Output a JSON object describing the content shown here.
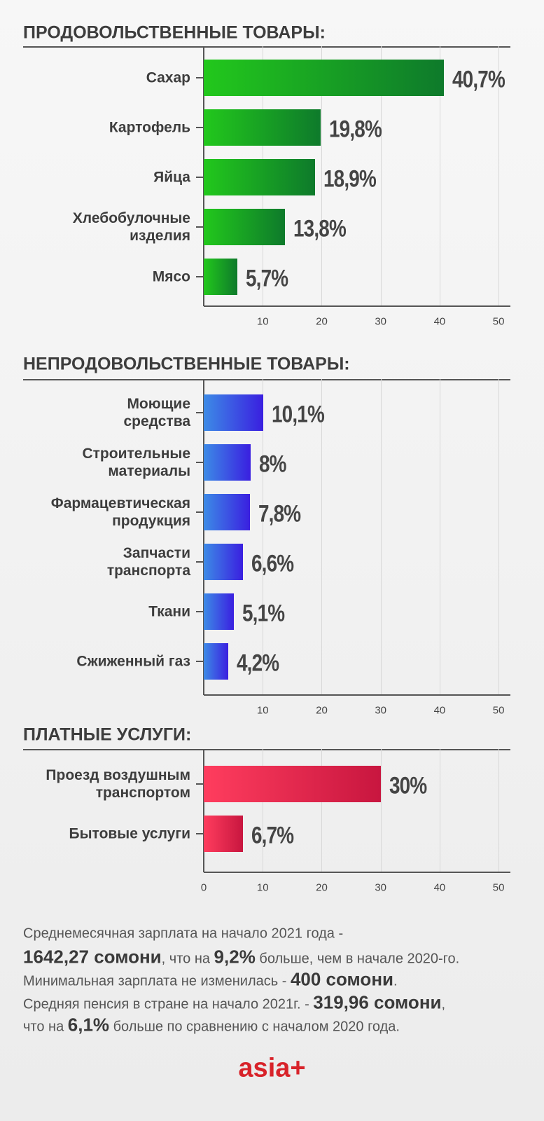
{
  "chart_data": [
    {
      "type": "bar",
      "orientation": "horizontal",
      "title": "ПРОДОВОЛЬСТВЕННЫЕ ТОВАРЫ:",
      "categories": [
        "Сахар",
        "Картофель",
        "Яйца",
        "Хлебобулочные\nизделия",
        "Мясо"
      ],
      "values": [
        40.7,
        19.8,
        18.9,
        13.8,
        5.7
      ],
      "value_labels": [
        "40,7%",
        "19,8%",
        "18,9%",
        "13,8%",
        "5,7%"
      ],
      "colors": [
        "#22c81c",
        "#0e7a2b"
      ],
      "xlim": [
        0,
        52
      ],
      "xticks": [
        10,
        20,
        30,
        40,
        50
      ],
      "grid": true
    },
    {
      "type": "bar",
      "orientation": "horizontal",
      "title": "НЕПРОДОВОЛЬСТВЕННЫЕ ТОВАРЫ:",
      "categories": [
        "Моющие\nсредства",
        "Строительные\nматериалы",
        "Фармацевтическая\nпродукция",
        "Запчасти\nтранспорта",
        "Ткани",
        "Сжиженный газ"
      ],
      "values": [
        10.1,
        8,
        7.8,
        6.6,
        5.1,
        4.2
      ],
      "value_labels": [
        "10,1%",
        "8%",
        "7,8%",
        "6,6%",
        "5,1%",
        "4,2%"
      ],
      "colors": [
        "#3d8be6",
        "#3a1fe0"
      ],
      "xlim": [
        0,
        52
      ],
      "xticks": [
        10,
        20,
        30,
        40,
        50
      ],
      "grid": true
    },
    {
      "type": "bar",
      "orientation": "horizontal",
      "title": "ПЛАТНЫЕ УСЛУГИ:",
      "categories": [
        "Проезд воздушным\nтранспортом",
        "Бытовые услуги"
      ],
      "values": [
        30,
        6.7
      ],
      "value_labels": [
        "30%",
        "6,7%"
      ],
      "colors": [
        "#ff3d5e",
        "#c8163f"
      ],
      "xlim": [
        0,
        52
      ],
      "xticks": [
        0,
        10,
        20,
        30,
        40,
        50
      ],
      "grid": true
    }
  ],
  "notes": [
    [
      {
        "text": "Среднемесячная зарплата на начало 2021 года -",
        "bold": false
      }
    ],
    [
      {
        "text": "1642,27 сомони",
        "bold": true
      },
      {
        "text": ", что на ",
        "bold": false
      },
      {
        "text": "9,2%",
        "bold": true
      },
      {
        "text": " больше, чем в начале 2020-го.",
        "bold": false
      }
    ],
    [
      {
        "text": "Минимальная зарплата не изменилась - ",
        "bold": false
      },
      {
        "text": "400 сомони",
        "bold": true
      },
      {
        "text": ".",
        "bold": false
      }
    ],
    [
      {
        "text": "Средняя пенсия в стране на начало 2021г. - ",
        "bold": false
      },
      {
        "text": "319,96 сомони",
        "bold": true
      },
      {
        "text": ",",
        "bold": false
      }
    ],
    [
      {
        "text": "что на ",
        "bold": false
      },
      {
        "text": "6,1%",
        "bold": true
      },
      {
        "text": " больше по сравнению с началом 2020 года.",
        "bold": false
      }
    ]
  ],
  "logo": "asia+"
}
